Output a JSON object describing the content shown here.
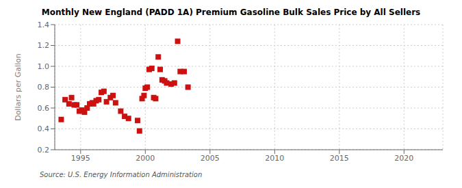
{
  "chart_data": {
    "type": "scatter",
    "title": "Monthly New England (PADD 1A) Premium Gasoline Bulk Sales Price by All Sellers",
    "y_label": "Dollars per Gallon",
    "annotations": [
      "Source: U.S. Energy Information Administration"
    ],
    "color": "#cc1111",
    "marker": "square",
    "grid": true,
    "xlim": [
      1993.0,
      2023.0
    ],
    "ylim": [
      0.2,
      1.4
    ],
    "xticks": [
      1995,
      2000,
      2005,
      2010,
      2015,
      2020
    ],
    "yticks": [
      0.2,
      0.4,
      0.6,
      0.8,
      {
        "value": 1.0,
        "label": "1.0"
      },
      1.2,
      1.4
    ],
    "x": [
      1993.5,
      1993.8,
      1994.1,
      1994.3,
      1994.5,
      1994.7,
      1994.9,
      1995.1,
      1995.3,
      1995.5,
      1995.7,
      1995.9,
      1996.0,
      1996.2,
      1996.4,
      1996.6,
      1996.8,
      1997.0,
      1997.3,
      1997.5,
      1997.7,
      1998.1,
      1998.4,
      1998.7,
      1999.4,
      1999.55,
      1999.75,
      1999.9,
      2000.0,
      2000.15,
      2000.3,
      2000.5,
      2000.65,
      2000.8,
      2001.0,
      2001.15,
      2001.3,
      2001.5,
      2001.65,
      2002.0,
      2002.25,
      2002.5,
      2002.7,
      2003.0,
      2003.3
    ],
    "values": [
      0.49,
      0.68,
      0.64,
      0.7,
      0.63,
      0.63,
      0.57,
      0.58,
      0.56,
      0.6,
      0.64,
      0.65,
      0.64,
      0.67,
      0.68,
      0.75,
      0.76,
      0.66,
      0.7,
      0.72,
      0.65,
      0.57,
      0.52,
      0.5,
      0.48,
      0.38,
      0.69,
      0.72,
      0.79,
      0.8,
      0.97,
      0.98,
      0.7,
      0.69,
      1.09,
      0.97,
      0.87,
      0.86,
      0.84,
      0.83,
      0.84,
      1.24,
      0.95,
      0.95,
      0.8
    ]
  }
}
